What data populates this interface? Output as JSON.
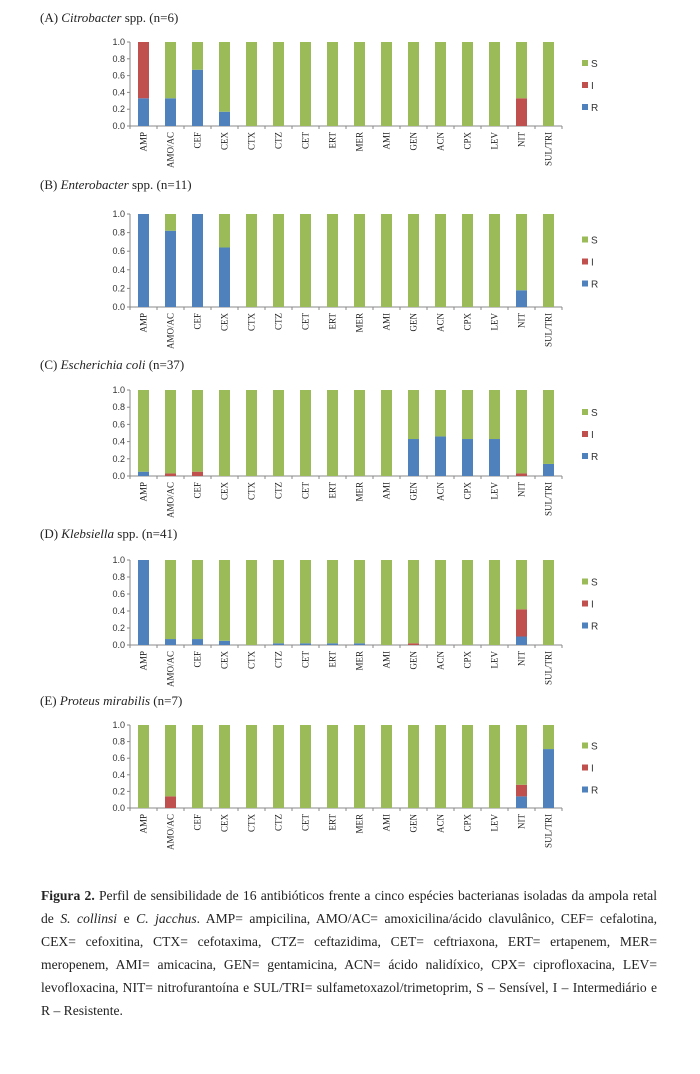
{
  "chart_data": [
    {
      "type": "bar",
      "stacked": true,
      "panel": "(A)",
      "organism": "Citrobacter",
      "organism_suffix": "spp.",
      "n_label": "(n=6)",
      "categories": [
        "AMP",
        "AMO/AC",
        "CEF",
        "CEX",
        "CTX",
        "CTZ",
        "CET",
        "ERT",
        "MER",
        "AMI",
        "GEN",
        "ACN",
        "CPX",
        "LEV",
        "NIT",
        "SUL/TRI"
      ],
      "series": [
        {
          "name": "R",
          "values": [
            0.33,
            0.33,
            0.67,
            0.17,
            0,
            0,
            0,
            0,
            0,
            0,
            0,
            0,
            0,
            0,
            0,
            0
          ]
        },
        {
          "name": "I",
          "values": [
            0.67,
            0,
            0,
            0,
            0,
            0,
            0,
            0,
            0,
            0,
            0,
            0,
            0,
            0,
            0.33,
            0
          ]
        },
        {
          "name": "S",
          "values": [
            0,
            0.67,
            0.33,
            0.83,
            1,
            1,
            1,
            1,
            1,
            1,
            1,
            1,
            1,
            1,
            0.67,
            1
          ]
        }
      ],
      "ylim": [
        0,
        1.0
      ],
      "yticks": [
        "0.0",
        "0.2",
        "0.4",
        "0.6",
        "0.8",
        "1.0"
      ],
      "legend": [
        "S",
        "I",
        "R"
      ],
      "legend_position": "right"
    },
    {
      "type": "bar",
      "stacked": true,
      "panel": "(B)",
      "organism": "Enterobacter",
      "organism_suffix": "spp.",
      "n_label": "(n=11)",
      "categories": [
        "AMP",
        "AMO/AC",
        "CEF",
        "CEX",
        "CTX",
        "CTZ",
        "CET",
        "ERT",
        "MER",
        "AMI",
        "GEN",
        "ACN",
        "CPX",
        "LEV",
        "NIT",
        "SUL/TRI"
      ],
      "series": [
        {
          "name": "R",
          "values": [
            1.0,
            0.82,
            1.0,
            0.64,
            0,
            0,
            0,
            0,
            0,
            0,
            0,
            0,
            0,
            0,
            0.18,
            0
          ]
        },
        {
          "name": "I",
          "values": [
            0,
            0,
            0,
            0,
            0,
            0,
            0,
            0,
            0,
            0,
            0,
            0,
            0,
            0,
            0,
            0
          ]
        },
        {
          "name": "S",
          "values": [
            0,
            0.18,
            0,
            0.36,
            1,
            1,
            1,
            1,
            1,
            1,
            1,
            1,
            1,
            1,
            0.82,
            1
          ]
        }
      ],
      "ylim": [
        0,
        1.0
      ],
      "yticks": [
        "0.0",
        "0.2",
        "0.4",
        "0.6",
        "0.8",
        "1.0"
      ],
      "legend": [
        "S",
        "I",
        "R"
      ],
      "legend_position": "right"
    },
    {
      "type": "bar",
      "stacked": true,
      "panel": "(C)",
      "organism": "Escherichia coli",
      "organism_suffix": "",
      "n_label": "(n=37)",
      "categories": [
        "AMP",
        "AMO/AC",
        "CEF",
        "CEX",
        "CTX",
        "CTZ",
        "CET",
        "ERT",
        "MER",
        "AMI",
        "GEN",
        "ACN",
        "CPX",
        "LEV",
        "NIT",
        "SUL/TRI"
      ],
      "series": [
        {
          "name": "R",
          "values": [
            0.05,
            0,
            0,
            0,
            0,
            0,
            0,
            0,
            0,
            0,
            0.43,
            0.46,
            0.43,
            0.43,
            0,
            0.14
          ]
        },
        {
          "name": "I",
          "values": [
            0,
            0.03,
            0.05,
            0,
            0,
            0,
            0,
            0,
            0,
            0,
            0,
            0,
            0,
            0,
            0.03,
            0
          ]
        },
        {
          "name": "S",
          "values": [
            0.95,
            0.97,
            0.95,
            1,
            1,
            1,
            1,
            1,
            1,
            1,
            0.57,
            0.54,
            0.57,
            0.57,
            0.97,
            0.86
          ]
        }
      ],
      "ylim": [
        0,
        1.0
      ],
      "yticks": [
        "0.0",
        "0.2",
        "0.4",
        "0.6",
        "0.8",
        "1.0"
      ],
      "legend": [
        "S",
        "I",
        "R"
      ],
      "legend_position": "right"
    },
    {
      "type": "bar",
      "stacked": true,
      "panel": "(D)",
      "organism": "Klebsiella",
      "organism_suffix": "spp.",
      "n_label": "(n=41)",
      "categories": [
        "AMP",
        "AMO/AC",
        "CEF",
        "CEX",
        "CTX",
        "CTZ",
        "CET",
        "ERT",
        "MER",
        "AMI",
        "GEN",
        "ACN",
        "CPX",
        "LEV",
        "NIT",
        "SUL/TRI"
      ],
      "series": [
        {
          "name": "R",
          "values": [
            1.0,
            0.07,
            0.07,
            0.05,
            0,
            0.02,
            0.02,
            0.02,
            0.02,
            0,
            0,
            0,
            0,
            0,
            0.1,
            0
          ]
        },
        {
          "name": "I",
          "values": [
            0,
            0,
            0,
            0,
            0,
            0,
            0,
            0,
            0,
            0,
            0.02,
            0,
            0,
            0,
            0.32,
            0
          ]
        },
        {
          "name": "S",
          "values": [
            0,
            0.93,
            0.93,
            0.95,
            1,
            0.98,
            0.98,
            0.98,
            0.98,
            1,
            0.98,
            1,
            1,
            1,
            0.58,
            1
          ]
        }
      ],
      "ylim": [
        0,
        1.0
      ],
      "yticks": [
        "0.0",
        "0.2",
        "0.4",
        "0.6",
        "0.8",
        "1.0"
      ],
      "legend": [
        "S",
        "I",
        "R"
      ],
      "legend_position": "right"
    },
    {
      "type": "bar",
      "stacked": true,
      "panel": "(E)",
      "organism": "Proteus mirabilis",
      "organism_suffix": "",
      "n_label": "(n=7)",
      "categories": [
        "AMP",
        "AMO/AC",
        "CEF",
        "CEX",
        "CTX",
        "CTZ",
        "CET",
        "ERT",
        "MER",
        "AMI",
        "GEN",
        "ACN",
        "CPX",
        "LEV",
        "NIT",
        "SUL/TRI"
      ],
      "series": [
        {
          "name": "R",
          "values": [
            0,
            0,
            0,
            0,
            0,
            0,
            0,
            0,
            0,
            0,
            0,
            0,
            0,
            0,
            0.14,
            0.71
          ]
        },
        {
          "name": "I",
          "values": [
            0,
            0.14,
            0,
            0,
            0,
            0,
            0,
            0,
            0,
            0,
            0,
            0,
            0,
            0,
            0.14,
            0
          ]
        },
        {
          "name": "S",
          "values": [
            1,
            0.86,
            1,
            1,
            1,
            1,
            1,
            1,
            1,
            1,
            1,
            1,
            1,
            1,
            0.72,
            0.29
          ]
        }
      ],
      "ylim": [
        0,
        1.0
      ],
      "yticks": [
        "0.0",
        "0.2",
        "0.4",
        "0.6",
        "0.8",
        "1.0"
      ],
      "legend": [
        "S",
        "I",
        "R"
      ],
      "legend_position": "right"
    }
  ],
  "colors": {
    "S": "#9bbb59",
    "I": "#c0504d",
    "R": "#4f81bd",
    "axis": "#888888"
  },
  "caption": {
    "label": "Figura 2.",
    "text_1": " Perfil de sensibilidade de 16 antibióticos frente a cinco espécies bacterianas isoladas da ampola retal de ",
    "species_1": "S. collinsi",
    "text_2": " e ",
    "species_2": "C. jacchus",
    "text_3": ". AMP= ampicilina, AMO/AC= amoxicilina/ácido clavulânico, CEF= cefalotina, CEX= cefoxitina, CTX= cefotaxima, CTZ= ceftazidima, CET= ceftriaxona, ERT= ertapenem, MER= meropenem, AMI= amicacina, GEN= gentamicina, ACN= ácido nalidíxico, CPX= ciprofloxacina, LEV= levofloxacina, NIT= nitrofurantoína e SUL/TRI= sulfametoxazol/trimetoprim, S – Sensível, I – Intermediário e R – Resistente."
  }
}
